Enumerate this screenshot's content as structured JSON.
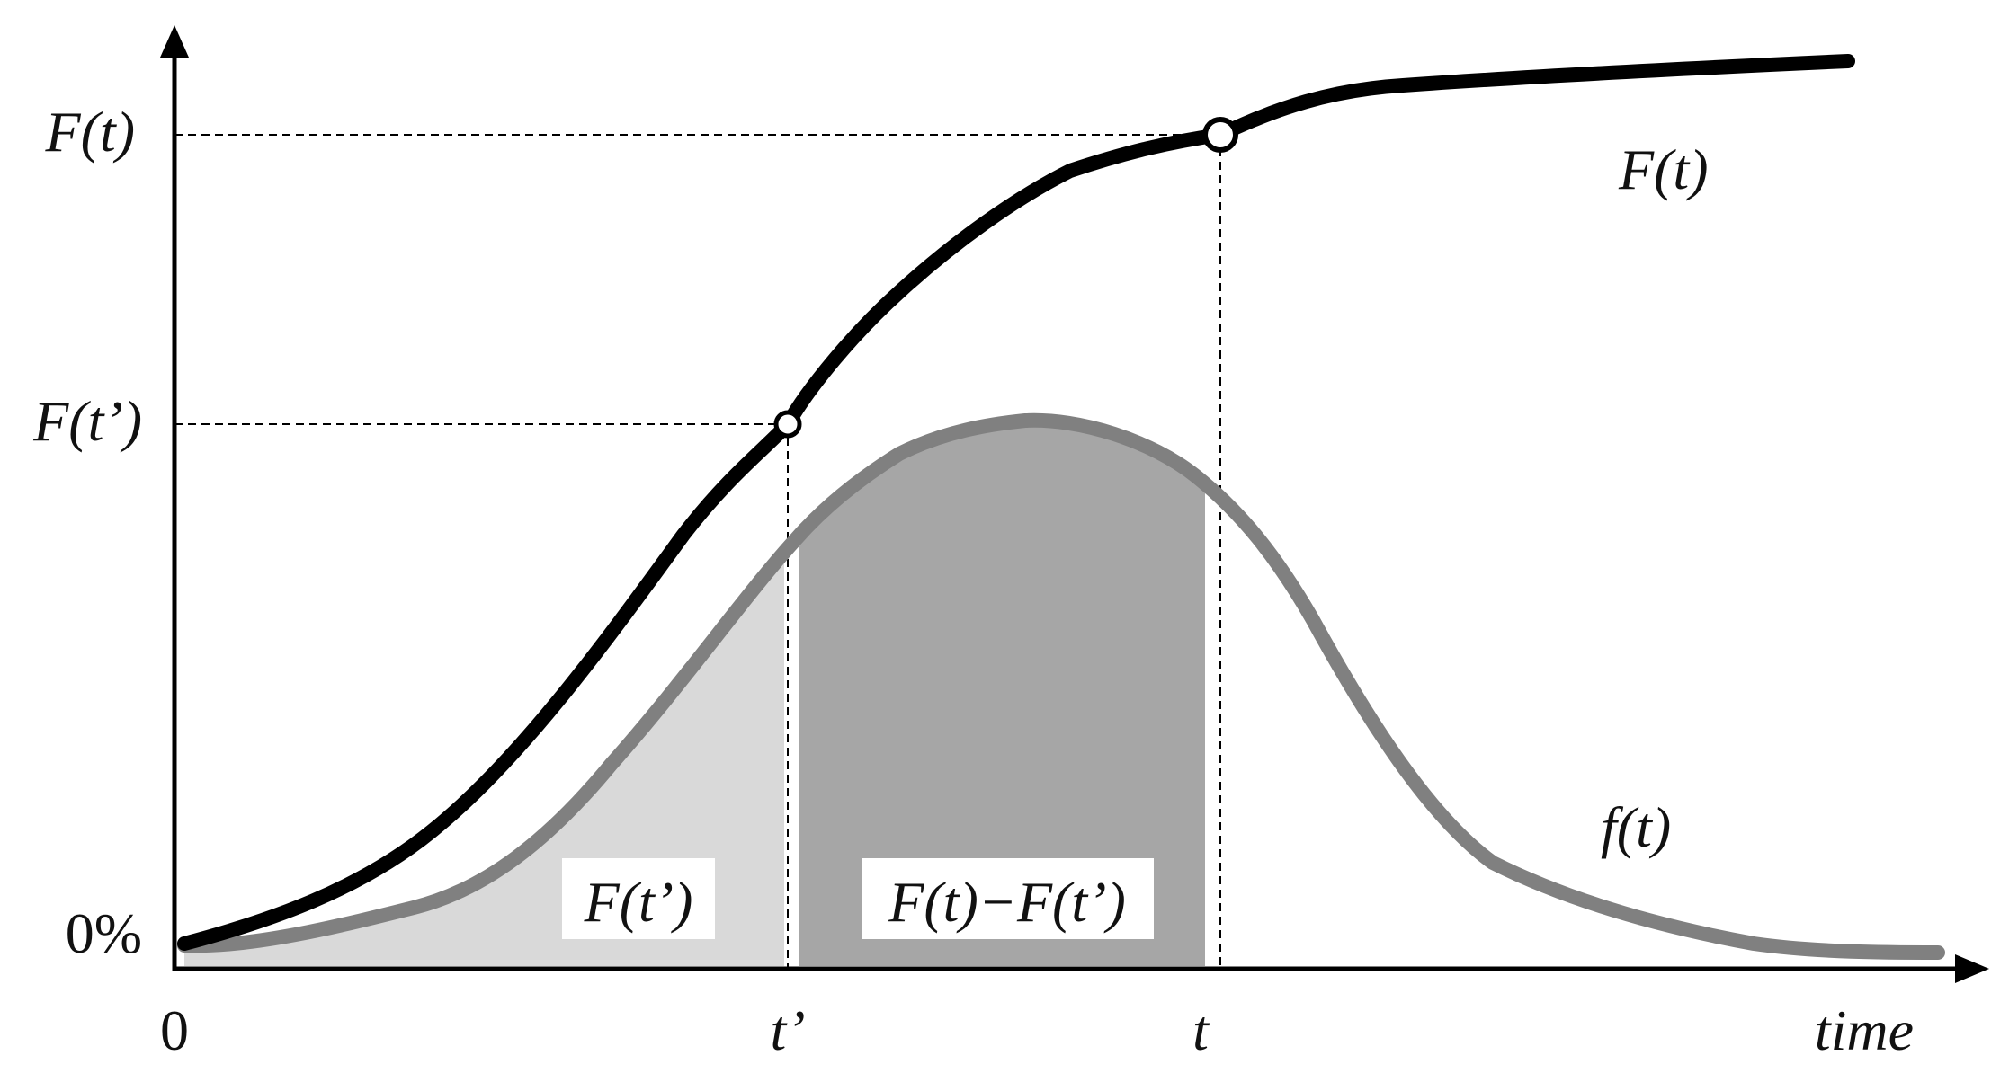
{
  "labels": {
    "y_Ft": "F(t)",
    "y_Ftp": "F(t’)",
    "y_zero": "0%",
    "x_zero": "0",
    "x_tp": "t’",
    "x_t": "t",
    "x_time": "time",
    "curve_F": "F(t)",
    "curve_f": "f(t)",
    "area_left": "F(t’)",
    "area_mid": "F(t)−F(t’)"
  },
  "colors": {
    "cdf_curve": "#000000",
    "pdf_curve": "#808080",
    "area_left": "#d9d9d9",
    "area_mid": "#a6a6a6",
    "axes": "#000000"
  }
}
